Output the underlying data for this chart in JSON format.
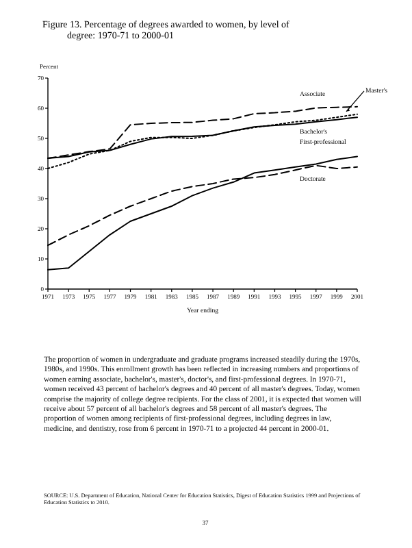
{
  "chart_data": {
    "type": "line",
    "title": "Figure 13. Percentage of degrees awarded to women, by level of degree: 1970-71 to 2000-01",
    "ylabel": "Percent",
    "xlabel": "Year ending",
    "x": [
      1971,
      1973,
      1975,
      1977,
      1979,
      1981,
      1983,
      1985,
      1987,
      1989,
      1991,
      1993,
      1995,
      1997,
      1999,
      2001
    ],
    "series": [
      {
        "name": "Associate",
        "color": "#000000",
        "line_style": "dashed",
        "values": [
          43.4,
          44.5,
          45.6,
          46.5,
          54.5,
          55,
          55.2,
          55.3,
          56,
          56.5,
          58.2,
          58.5,
          59,
          60.1,
          60.3,
          60.5
        ]
      },
      {
        "name": "Master's",
        "color": "#000000",
        "line_style": "dotted",
        "values": [
          40,
          42,
          44.8,
          46,
          49,
          50.3,
          50.3,
          50,
          51,
          52.5,
          53.6,
          54.5,
          55.5,
          56,
          57,
          58
        ]
      },
      {
        "name": "Bachelor's",
        "color": "#000000",
        "line_style": "solid",
        "values": [
          43.4,
          44,
          45.5,
          46,
          48,
          49.8,
          50.6,
          50.7,
          51,
          52.5,
          53.8,
          54.3,
          54.7,
          55.5,
          56.2,
          57
        ]
      },
      {
        "name": "First-professional",
        "color": "#000000",
        "line_style": "solid",
        "values": [
          6.4,
          7,
          12.5,
          18,
          22.5,
          25,
          27.5,
          31,
          33.5,
          35.5,
          38.5,
          39.5,
          40.5,
          41.5,
          43,
          44
        ]
      },
      {
        "name": "Doctorate",
        "color": "#000000",
        "line_style": "dashed",
        "values": [
          14.5,
          18,
          21,
          24.5,
          27.5,
          30,
          32.5,
          34,
          35,
          36.5,
          37,
          38,
          39.5,
          41,
          40,
          40.5
        ]
      }
    ],
    "xlim": [
      1971,
      2001
    ],
    "xticks": [
      1971,
      1973,
      1975,
      1977,
      1979,
      1981,
      1983,
      1985,
      1987,
      1989,
      1991,
      1993,
      1995,
      1997,
      1999,
      2001
    ],
    "ylim": [
      0,
      70
    ],
    "yticks": [
      0,
      10,
      20,
      30,
      40,
      50,
      60,
      70
    ],
    "grid": false,
    "legend": false,
    "marker": "none",
    "annotations": [
      "The proportion of women in undergraduate and graduate programs increased steadily during the 1970s, 1980s, and 1990s. This enrollment growth has been reflected in increasing numbers and proportions of women earning associate, bachelor's, master's, doctor's, and first-professional degrees. In 1970-71, women received 43 percent of bachelor's degrees and 40 percent of all master's degrees. Today, women comprise the majority of college degree recipients. For the class of 2001, it is expected that women will receive about 57 percent of all bachelor's degrees and 58 percent of all master's degrees. The proportion of women among recipients of first-professional degrees, including degrees in law, medicine, and dentistry, rose from 6 percent in 1970-71 to a projected 44 percent in 2000-01.",
      "SOURCE: U.S. Department of Education, National Center for Education Statistics, Digest of Education Statistics 1999 and Projections of Education Statistics to 2010.",
      "37"
    ]
  }
}
